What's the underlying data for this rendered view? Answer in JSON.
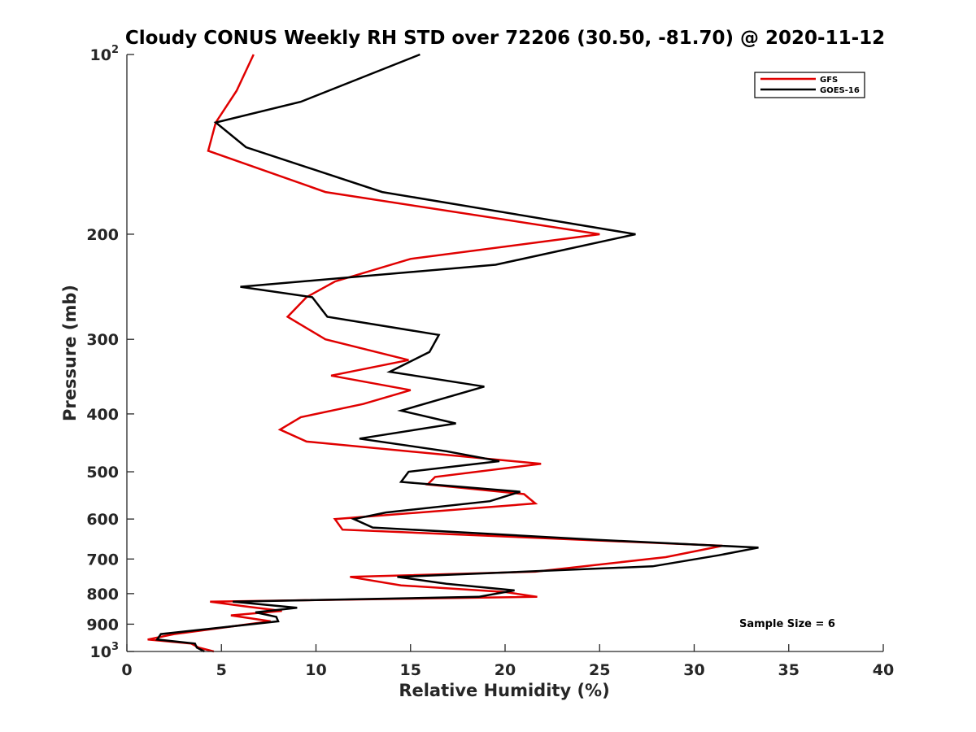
{
  "chart_data": {
    "type": "line",
    "title": "Cloudy CONUS Weekly RH STD over 72206 (30.50, -81.70) @ 2020-11-12",
    "xlabel": "Relative Humidity (%)",
    "ylabel": "Pressure (mb)",
    "xlim": [
      0,
      40
    ],
    "ylim": [
      100,
      1000
    ],
    "yscale": "log",
    "y_reversed": true,
    "xticks": [
      0,
      5,
      10,
      15,
      20,
      25,
      30,
      35,
      40
    ],
    "xtick_labels": [
      "0",
      "5",
      "10",
      "15",
      "20",
      "25",
      "30",
      "35",
      "40"
    ],
    "yticks": [
      {
        "value": 100,
        "base": "10",
        "exp": "2"
      },
      {
        "value": 200,
        "label": "200"
      },
      {
        "value": 300,
        "label": "300"
      },
      {
        "value": 400,
        "label": "400"
      },
      {
        "value": 500,
        "label": "500"
      },
      {
        "value": 600,
        "label": "600"
      },
      {
        "value": 700,
        "label": "700"
      },
      {
        "value": 800,
        "label": "800"
      },
      {
        "value": 900,
        "label": "900"
      },
      {
        "value": 1000,
        "base": "10",
        "exp": "3"
      }
    ],
    "legend_position": "top-right",
    "grid": false,
    "annotation": "Sample Size = 6",
    "series": [
      {
        "name": "GFS",
        "color": "#e00000",
        "points": [
          [
            6.7,
            100
          ],
          [
            5.8,
            115
          ],
          [
            4.7,
            130
          ],
          [
            4.3,
            145
          ],
          [
            10.5,
            170
          ],
          [
            25.0,
            200
          ],
          [
            15.0,
            220
          ],
          [
            11.0,
            240
          ],
          [
            9.5,
            255
          ],
          [
            8.5,
            275
          ],
          [
            10.5,
            300
          ],
          [
            14.9,
            325
          ],
          [
            10.8,
            345
          ],
          [
            15.0,
            365
          ],
          [
            12.5,
            385
          ],
          [
            9.2,
            405
          ],
          [
            8.1,
            425
          ],
          [
            9.5,
            445
          ],
          [
            21.9,
            485
          ],
          [
            16.3,
            510
          ],
          [
            15.9,
            525
          ],
          [
            21.0,
            545
          ],
          [
            21.6,
            565
          ],
          [
            11.0,
            600
          ],
          [
            11.4,
            625
          ],
          [
            31.5,
            665
          ],
          [
            28.5,
            695
          ],
          [
            21.6,
            735
          ],
          [
            11.8,
            750
          ],
          [
            14.5,
            775
          ],
          [
            20.0,
            795
          ],
          [
            21.7,
            810
          ],
          [
            4.4,
            825
          ],
          [
            6.2,
            840
          ],
          [
            8.2,
            855
          ],
          [
            5.5,
            870
          ],
          [
            7.6,
            890
          ],
          [
            2.5,
            935
          ],
          [
            1.1,
            955
          ],
          [
            3.4,
            970
          ],
          [
            3.8,
            985
          ],
          [
            4.6,
            1000
          ]
        ]
      },
      {
        "name": "GOES-16",
        "color": "#000000",
        "points": [
          [
            15.5,
            100
          ],
          [
            9.2,
            120
          ],
          [
            4.7,
            130
          ],
          [
            6.3,
            143
          ],
          [
            13.5,
            170
          ],
          [
            26.9,
            200
          ],
          [
            19.5,
            225
          ],
          [
            6.0,
            245
          ],
          [
            9.8,
            255
          ],
          [
            10.6,
            275
          ],
          [
            16.5,
            295
          ],
          [
            16.0,
            315
          ],
          [
            13.9,
            340
          ],
          [
            18.9,
            360
          ],
          [
            14.5,
            395
          ],
          [
            17.4,
            415
          ],
          [
            12.3,
            440
          ],
          [
            16.9,
            462
          ],
          [
            19.7,
            480
          ],
          [
            14.9,
            500
          ],
          [
            14.5,
            520
          ],
          [
            20.8,
            540
          ],
          [
            19.2,
            560
          ],
          [
            13.7,
            585
          ],
          [
            12.0,
            600
          ],
          [
            13.0,
            620
          ],
          [
            24.9,
            650
          ],
          [
            33.4,
            670
          ],
          [
            31.3,
            690
          ],
          [
            27.8,
            720
          ],
          [
            14.3,
            750
          ],
          [
            16.9,
            770
          ],
          [
            20.5,
            790
          ],
          [
            18.6,
            810
          ],
          [
            5.6,
            825
          ],
          [
            9.0,
            845
          ],
          [
            6.8,
            860
          ],
          [
            7.9,
            875
          ],
          [
            8.0,
            890
          ],
          [
            1.8,
            935
          ],
          [
            1.6,
            955
          ],
          [
            3.6,
            970
          ],
          [
            3.7,
            985
          ],
          [
            4.1,
            1000
          ]
        ]
      }
    ]
  }
}
